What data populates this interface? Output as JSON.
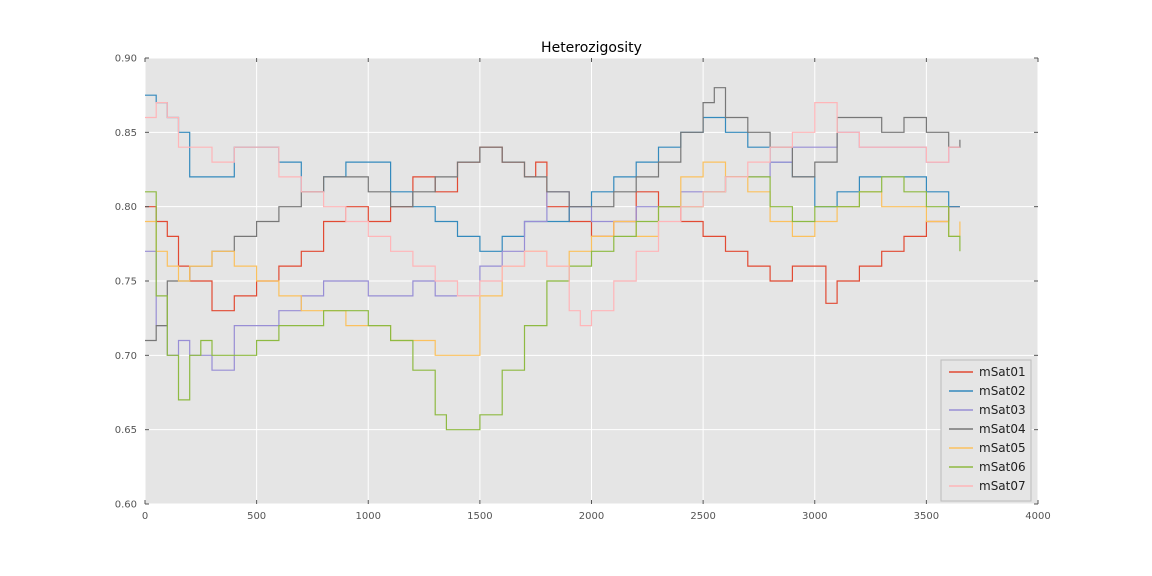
{
  "chart_data": {
    "type": "line",
    "title": "Heterozigosity",
    "xlabel": "",
    "ylabel": "",
    "xlim": [
      0,
      4000
    ],
    "ylim": [
      0.6,
      0.9
    ],
    "xticks": [
      0,
      500,
      1000,
      1500,
      2000,
      2500,
      3000,
      3500,
      4000
    ],
    "yticks": [
      0.6,
      0.65,
      0.7,
      0.75,
      0.8,
      0.85,
      0.9
    ],
    "xtick_labels": [
      "0",
      "500",
      "1000",
      "1500",
      "2000",
      "2500",
      "3000",
      "3500",
      "4000"
    ],
    "ytick_labels": [
      "0.60",
      "0.65",
      "0.70",
      "0.75",
      "0.80",
      "0.85",
      "0.90"
    ],
    "grid": true,
    "legend_position": "bottom-right",
    "background": "#e5e5e5",
    "series": [
      {
        "name": "mSat01",
        "color": "#e24a33",
        "x": [
          0,
          50,
          100,
          150,
          200,
          300,
          400,
          500,
          600,
          700,
          800,
          900,
          1000,
          1100,
          1200,
          1300,
          1400,
          1500,
          1600,
          1700,
          1750,
          1800,
          1900,
          2000,
          2100,
          2200,
          2300,
          2400,
          2500,
          2600,
          2700,
          2800,
          2900,
          3000,
          3050,
          3100,
          3200,
          3300,
          3400,
          3500,
          3600,
          3650
        ],
        "y": [
          0.8,
          0.79,
          0.78,
          0.76,
          0.75,
          0.73,
          0.74,
          0.75,
          0.76,
          0.77,
          0.79,
          0.8,
          0.79,
          0.8,
          0.82,
          0.81,
          0.83,
          0.84,
          0.83,
          0.82,
          0.83,
          0.8,
          0.79,
          0.78,
          0.79,
          0.81,
          0.8,
          0.79,
          0.78,
          0.77,
          0.76,
          0.75,
          0.76,
          0.76,
          0.735,
          0.75,
          0.76,
          0.77,
          0.78,
          0.79,
          0.8,
          0.8
        ]
      },
      {
        "name": "mSat02",
        "color": "#348abd",
        "x": [
          0,
          50,
          100,
          150,
          200,
          250,
          300,
          400,
          500,
          600,
          700,
          800,
          900,
          1000,
          1100,
          1200,
          1300,
          1400,
          1500,
          1600,
          1700,
          1800,
          1900,
          2000,
          2100,
          2200,
          2300,
          2400,
          2500,
          2600,
          2700,
          2800,
          2900,
          3000,
          3100,
          3200,
          3300,
          3400,
          3500,
          3600,
          3650
        ],
        "y": [
          0.875,
          0.87,
          0.86,
          0.85,
          0.82,
          0.82,
          0.82,
          0.84,
          0.84,
          0.83,
          0.81,
          0.82,
          0.83,
          0.83,
          0.81,
          0.8,
          0.79,
          0.78,
          0.77,
          0.78,
          0.79,
          0.79,
          0.8,
          0.81,
          0.82,
          0.83,
          0.84,
          0.85,
          0.86,
          0.85,
          0.84,
          0.83,
          0.82,
          0.8,
          0.81,
          0.82,
          0.82,
          0.82,
          0.81,
          0.8,
          0.8
        ]
      },
      {
        "name": "mSat03",
        "color": "#988ed5",
        "x": [
          0,
          50,
          100,
          150,
          200,
          250,
          300,
          400,
          500,
          600,
          700,
          800,
          900,
          1000,
          1100,
          1200,
          1300,
          1400,
          1500,
          1600,
          1700,
          1800,
          1900,
          2000,
          2100,
          2200,
          2300,
          2400,
          2500,
          2600,
          2700,
          2800,
          2900,
          3000,
          3100,
          3200,
          3300,
          3400,
          3500,
          3600,
          3650
        ],
        "y": [
          0.77,
          0.72,
          0.7,
          0.71,
          0.7,
          0.7,
          0.69,
          0.72,
          0.72,
          0.73,
          0.74,
          0.75,
          0.75,
          0.74,
          0.74,
          0.75,
          0.74,
          0.74,
          0.76,
          0.77,
          0.79,
          0.81,
          0.8,
          0.79,
          0.79,
          0.8,
          0.8,
          0.81,
          0.81,
          0.82,
          0.82,
          0.83,
          0.84,
          0.84,
          0.85,
          0.84,
          0.84,
          0.84,
          0.83,
          0.84,
          0.84
        ]
      },
      {
        "name": "mSat04",
        "color": "#777777",
        "x": [
          0,
          50,
          100,
          150,
          200,
          300,
          400,
          500,
          600,
          700,
          800,
          900,
          1000,
          1100,
          1200,
          1300,
          1400,
          1500,
          1600,
          1700,
          1800,
          1900,
          2000,
          2100,
          2200,
          2300,
          2400,
          2500,
          2550,
          2600,
          2700,
          2800,
          2900,
          3000,
          3100,
          3200,
          3300,
          3400,
          3500,
          3600,
          3650
        ],
        "y": [
          0.71,
          0.72,
          0.75,
          0.75,
          0.76,
          0.77,
          0.78,
          0.79,
          0.8,
          0.81,
          0.82,
          0.82,
          0.81,
          0.8,
          0.81,
          0.82,
          0.83,
          0.84,
          0.83,
          0.82,
          0.81,
          0.8,
          0.8,
          0.81,
          0.82,
          0.83,
          0.85,
          0.87,
          0.88,
          0.86,
          0.85,
          0.84,
          0.82,
          0.83,
          0.86,
          0.86,
          0.85,
          0.86,
          0.85,
          0.84,
          0.845
        ]
      },
      {
        "name": "mSat05",
        "color": "#fbc15e",
        "x": [
          0,
          50,
          100,
          150,
          200,
          300,
          400,
          500,
          600,
          700,
          800,
          900,
          1000,
          1100,
          1200,
          1300,
          1400,
          1500,
          1600,
          1700,
          1800,
          1900,
          2000,
          2100,
          2200,
          2300,
          2400,
          2500,
          2600,
          2700,
          2800,
          2900,
          3000,
          3100,
          3200,
          3300,
          3400,
          3500,
          3600,
          3650
        ],
        "y": [
          0.79,
          0.77,
          0.76,
          0.75,
          0.76,
          0.77,
          0.76,
          0.75,
          0.74,
          0.73,
          0.73,
          0.72,
          0.72,
          0.71,
          0.71,
          0.7,
          0.7,
          0.74,
          0.76,
          0.77,
          0.76,
          0.77,
          0.78,
          0.79,
          0.78,
          0.8,
          0.82,
          0.83,
          0.82,
          0.81,
          0.79,
          0.78,
          0.79,
          0.8,
          0.81,
          0.8,
          0.8,
          0.79,
          0.78,
          0.79
        ]
      },
      {
        "name": "mSat06",
        "color": "#8eba42",
        "x": [
          0,
          50,
          100,
          150,
          200,
          250,
          300,
          400,
          500,
          600,
          700,
          800,
          900,
          1000,
          1100,
          1200,
          1300,
          1350,
          1400,
          1500,
          1600,
          1700,
          1800,
          1900,
          2000,
          2100,
          2200,
          2300,
          2400,
          2500,
          2600,
          2700,
          2800,
          2900,
          3000,
          3100,
          3200,
          3300,
          3400,
          3500,
          3600,
          3650
        ],
        "y": [
          0.81,
          0.74,
          0.7,
          0.67,
          0.7,
          0.71,
          0.7,
          0.7,
          0.71,
          0.72,
          0.72,
          0.73,
          0.73,
          0.72,
          0.71,
          0.69,
          0.66,
          0.65,
          0.65,
          0.66,
          0.69,
          0.72,
          0.75,
          0.76,
          0.77,
          0.78,
          0.79,
          0.8,
          0.8,
          0.81,
          0.82,
          0.82,
          0.8,
          0.79,
          0.8,
          0.8,
          0.81,
          0.82,
          0.81,
          0.8,
          0.78,
          0.77
        ]
      },
      {
        "name": "mSat07",
        "color": "#ffb5b8",
        "x": [
          0,
          50,
          100,
          150,
          200,
          300,
          400,
          500,
          600,
          700,
          800,
          900,
          1000,
          1100,
          1200,
          1300,
          1400,
          1500,
          1600,
          1700,
          1800,
          1900,
          1950,
          2000,
          2100,
          2200,
          2300,
          2400,
          2500,
          2600,
          2700,
          2800,
          2900,
          3000,
          3100,
          3200,
          3300,
          3400,
          3500,
          3600,
          3650
        ],
        "y": [
          0.86,
          0.87,
          0.86,
          0.84,
          0.84,
          0.83,
          0.84,
          0.84,
          0.82,
          0.81,
          0.8,
          0.79,
          0.78,
          0.77,
          0.76,
          0.75,
          0.74,
          0.75,
          0.76,
          0.77,
          0.76,
          0.73,
          0.72,
          0.73,
          0.75,
          0.77,
          0.79,
          0.8,
          0.81,
          0.82,
          0.83,
          0.84,
          0.85,
          0.87,
          0.85,
          0.84,
          0.84,
          0.84,
          0.83,
          0.84,
          0.84
        ]
      }
    ]
  }
}
